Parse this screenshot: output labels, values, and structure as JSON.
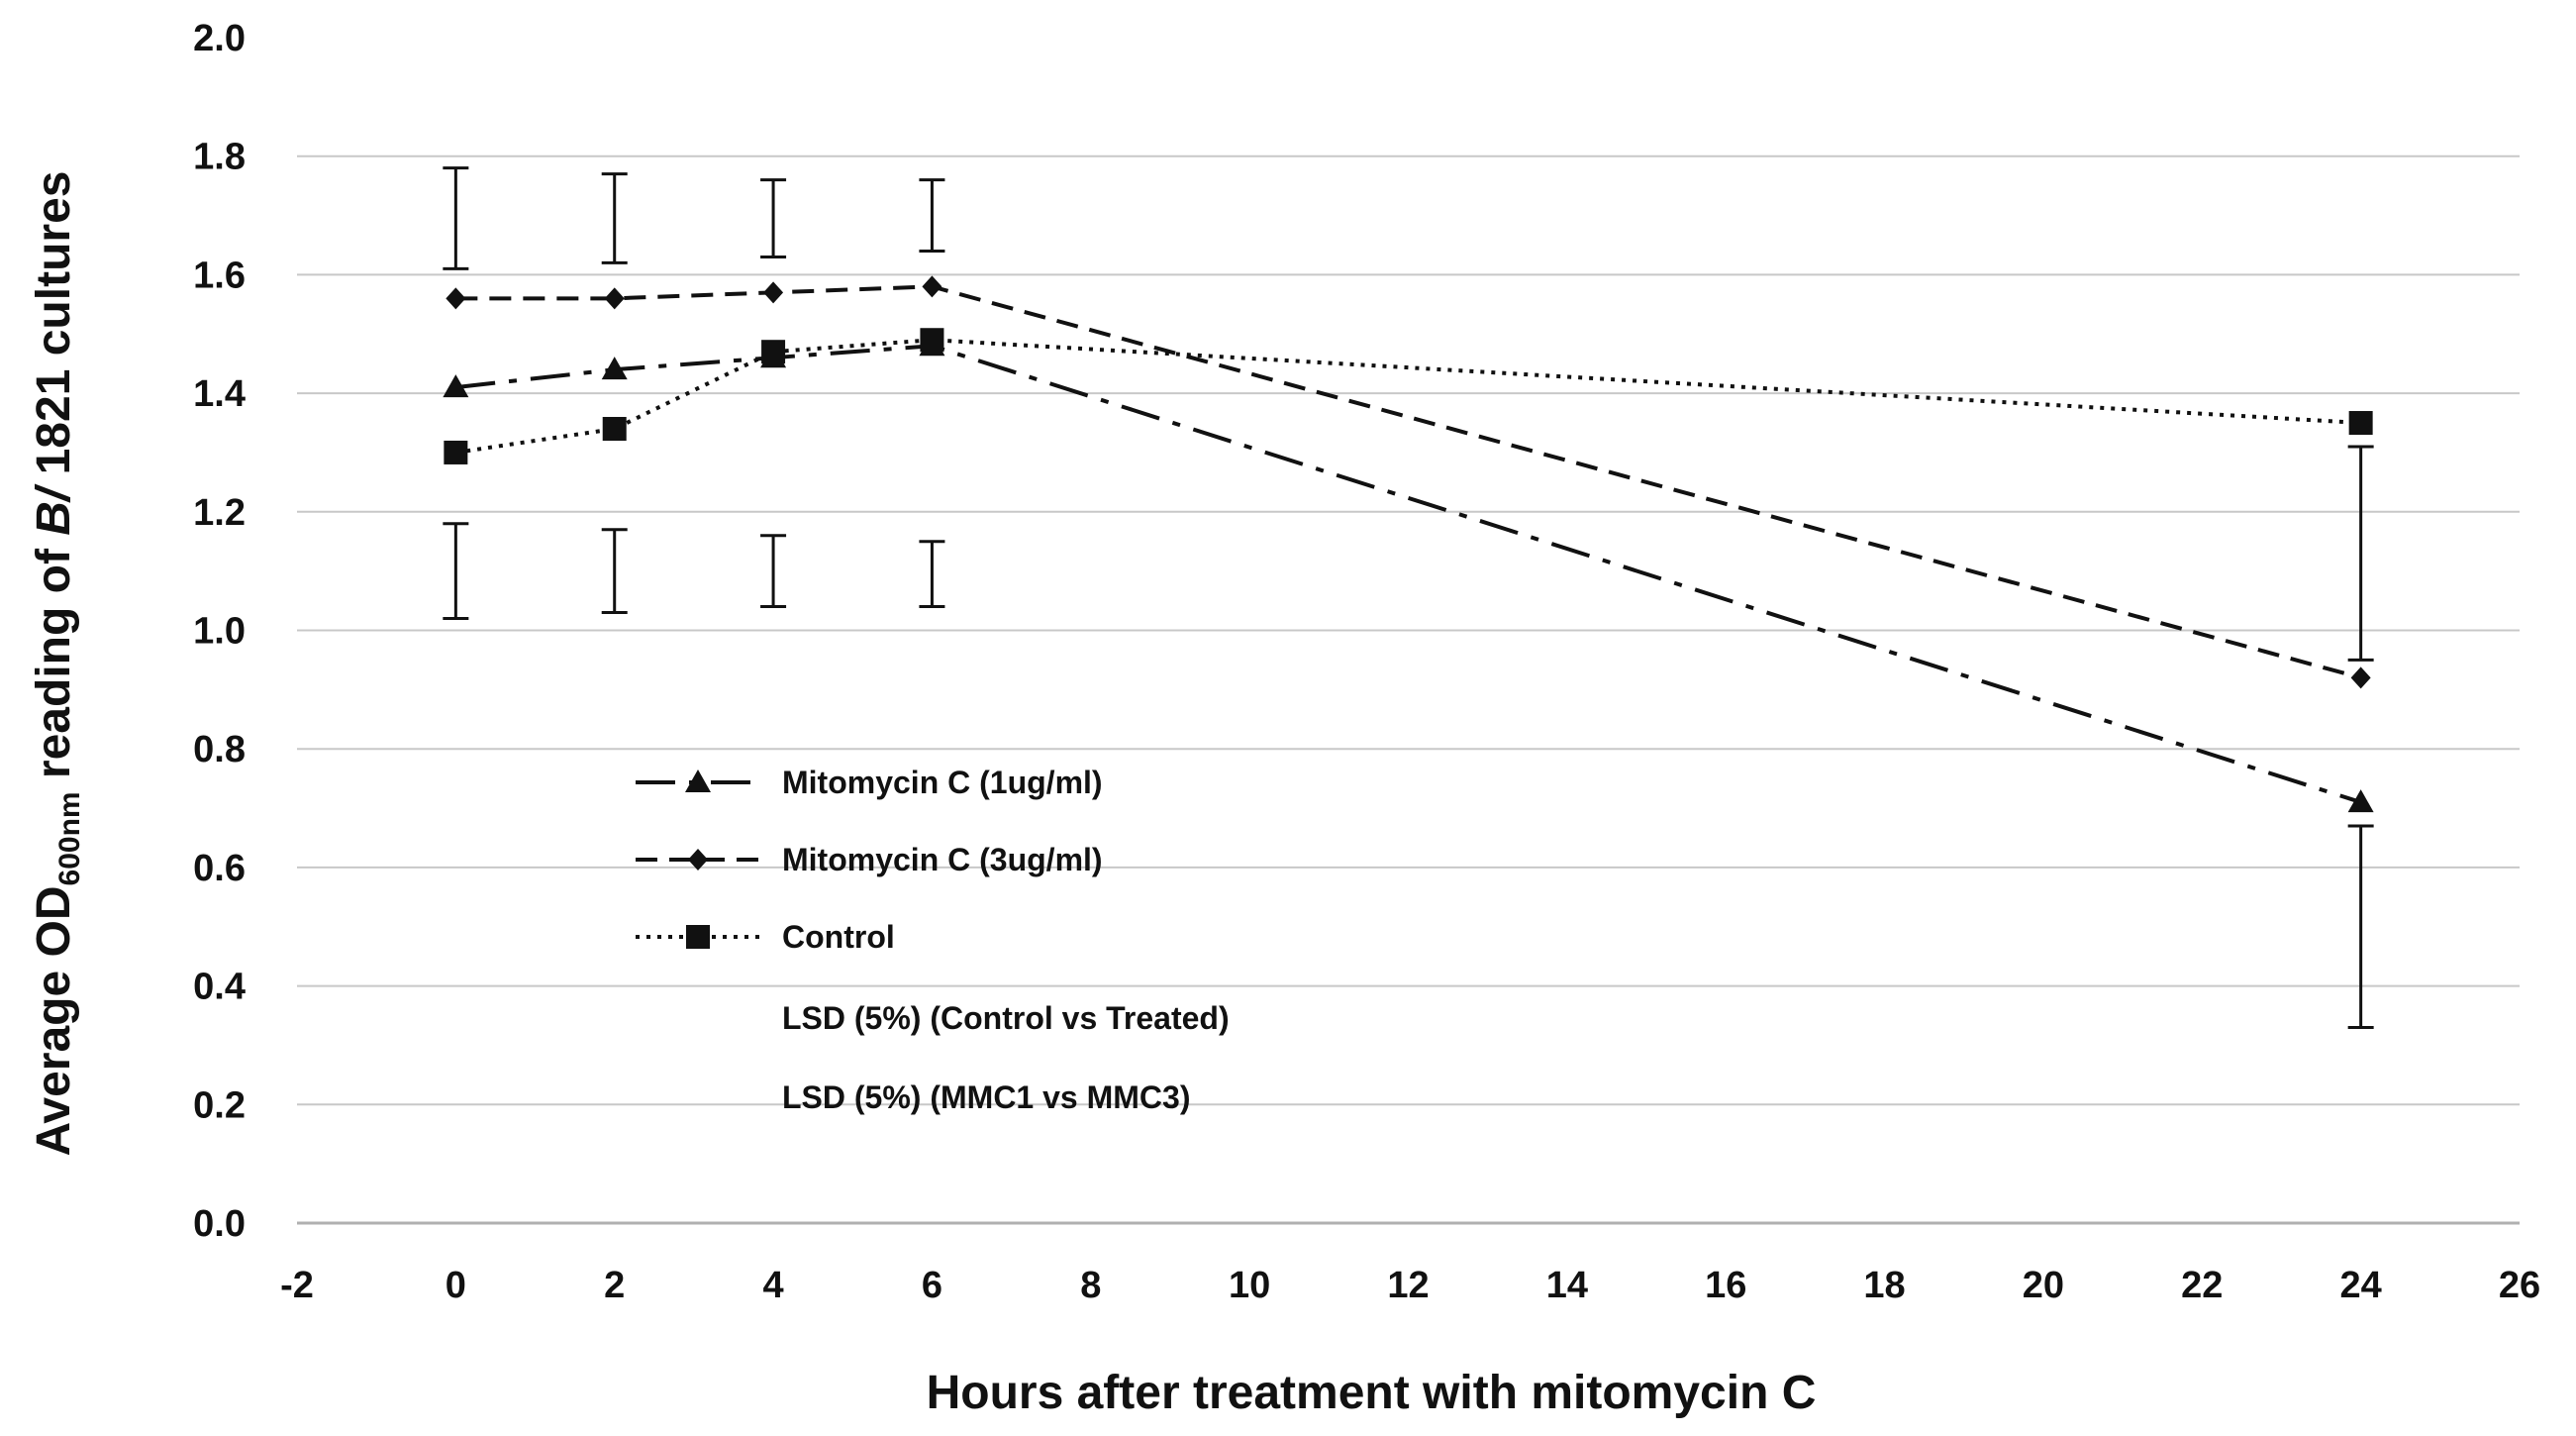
{
  "chart_data": {
    "type": "line",
    "title": "",
    "xlabel": "Hours after treatment with mitomycin C",
    "ylabel": {
      "prefix": "Average OD",
      "subscript": "600nm",
      "middle": " reading of ",
      "italic": "B/",
      "suffix": " 1821 cultures"
    },
    "xlim": [
      -2,
      26
    ],
    "ylim": [
      0,
      2
    ],
    "x_ticks": [
      "-2",
      "0",
      "2",
      "4",
      "6",
      "8",
      "10",
      "12",
      "14",
      "16",
      "18",
      "20",
      "22",
      "24",
      "26"
    ],
    "y_ticks": [
      "0.0",
      "0.2",
      "0.4",
      "0.6",
      "0.8",
      "1.0",
      "1.2",
      "1.4",
      "1.6",
      "1.8",
      "2.0"
    ],
    "grid": true,
    "legend_position": "center-left",
    "series": [
      {
        "name": "Mitomycin C (1ug/ml)",
        "marker": "triangle",
        "line": "dash-dot",
        "x": [
          0,
          2,
          4,
          6,
          24
        ],
        "y": [
          1.41,
          1.44,
          1.46,
          1.48,
          0.71
        ]
      },
      {
        "name": "Mitomycin C (3ug/ml)",
        "marker": "diamond",
        "line": "dashed",
        "x": [
          0,
          2,
          4,
          6,
          24
        ],
        "y": [
          1.56,
          1.56,
          1.57,
          1.58,
          0.92
        ]
      },
      {
        "name": "Control",
        "marker": "square",
        "line": "dotted",
        "x": [
          0,
          2,
          4,
          6,
          24
        ],
        "y": [
          1.3,
          1.34,
          1.47,
          1.49,
          1.35
        ]
      }
    ],
    "lsd_notes": [
      "LSD (5%) (Control vs Treated)",
      "LSD (5%) (MMC1 vs MMC3)"
    ],
    "lsd_bars": {
      "upper": [
        {
          "x": 0,
          "low": 1.61,
          "high": 1.78
        },
        {
          "x": 2,
          "low": 1.62,
          "high": 1.77
        },
        {
          "x": 4,
          "low": 1.63,
          "high": 1.76
        },
        {
          "x": 6,
          "low": 1.64,
          "high": 1.76
        },
        {
          "x": 24,
          "low": 0.95,
          "high": 1.31
        }
      ],
      "lower": [
        {
          "x": 0,
          "low": 1.02,
          "high": 1.18
        },
        {
          "x": 2,
          "low": 1.03,
          "high": 1.17
        },
        {
          "x": 4,
          "low": 1.04,
          "high": 1.16
        },
        {
          "x": 6,
          "low": 1.04,
          "high": 1.15
        },
        {
          "x": 24,
          "low": 0.33,
          "high": 0.67
        }
      ]
    }
  }
}
